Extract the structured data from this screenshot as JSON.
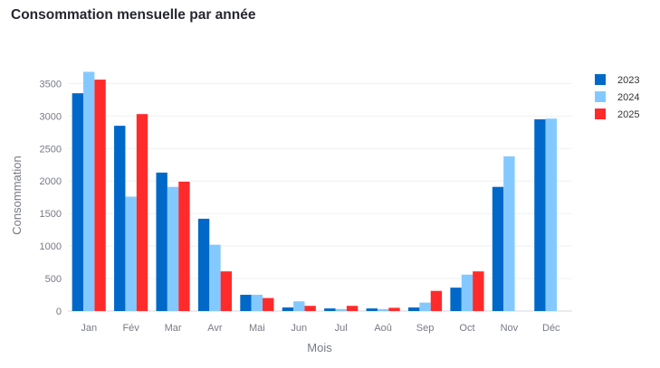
{
  "chart_data": {
    "type": "bar",
    "title": "Consommation mensuelle par année",
    "xlabel": "Mois",
    "ylabel": "Consommation",
    "categories": [
      "Jan",
      "Fév",
      "Mar",
      "Avr",
      "Mai",
      "Jun",
      "Jul",
      "Aoû",
      "Sep",
      "Oct",
      "Nov",
      "Déc"
    ],
    "ylim": [
      0,
      3700
    ],
    "yticks": [
      0,
      500,
      1000,
      1500,
      2000,
      2500,
      3000,
      3500
    ],
    "grid": true,
    "legend_position": "top-right",
    "series": [
      {
        "name": "2023",
        "color": "#0068c9",
        "values": [
          3350,
          2850,
          2130,
          1420,
          250,
          55,
          40,
          40,
          55,
          360,
          1910,
          2950
        ]
      },
      {
        "name": "2024",
        "color": "#83c9ff",
        "values": [
          3680,
          1760,
          1910,
          1020,
          250,
          150,
          30,
          30,
          130,
          560,
          2380,
          2960
        ]
      },
      {
        "name": "2025",
        "color": "#ff2b2b",
        "values": [
          3560,
          3030,
          1990,
          610,
          200,
          80,
          80,
          50,
          310,
          610,
          null,
          null
        ]
      }
    ]
  }
}
